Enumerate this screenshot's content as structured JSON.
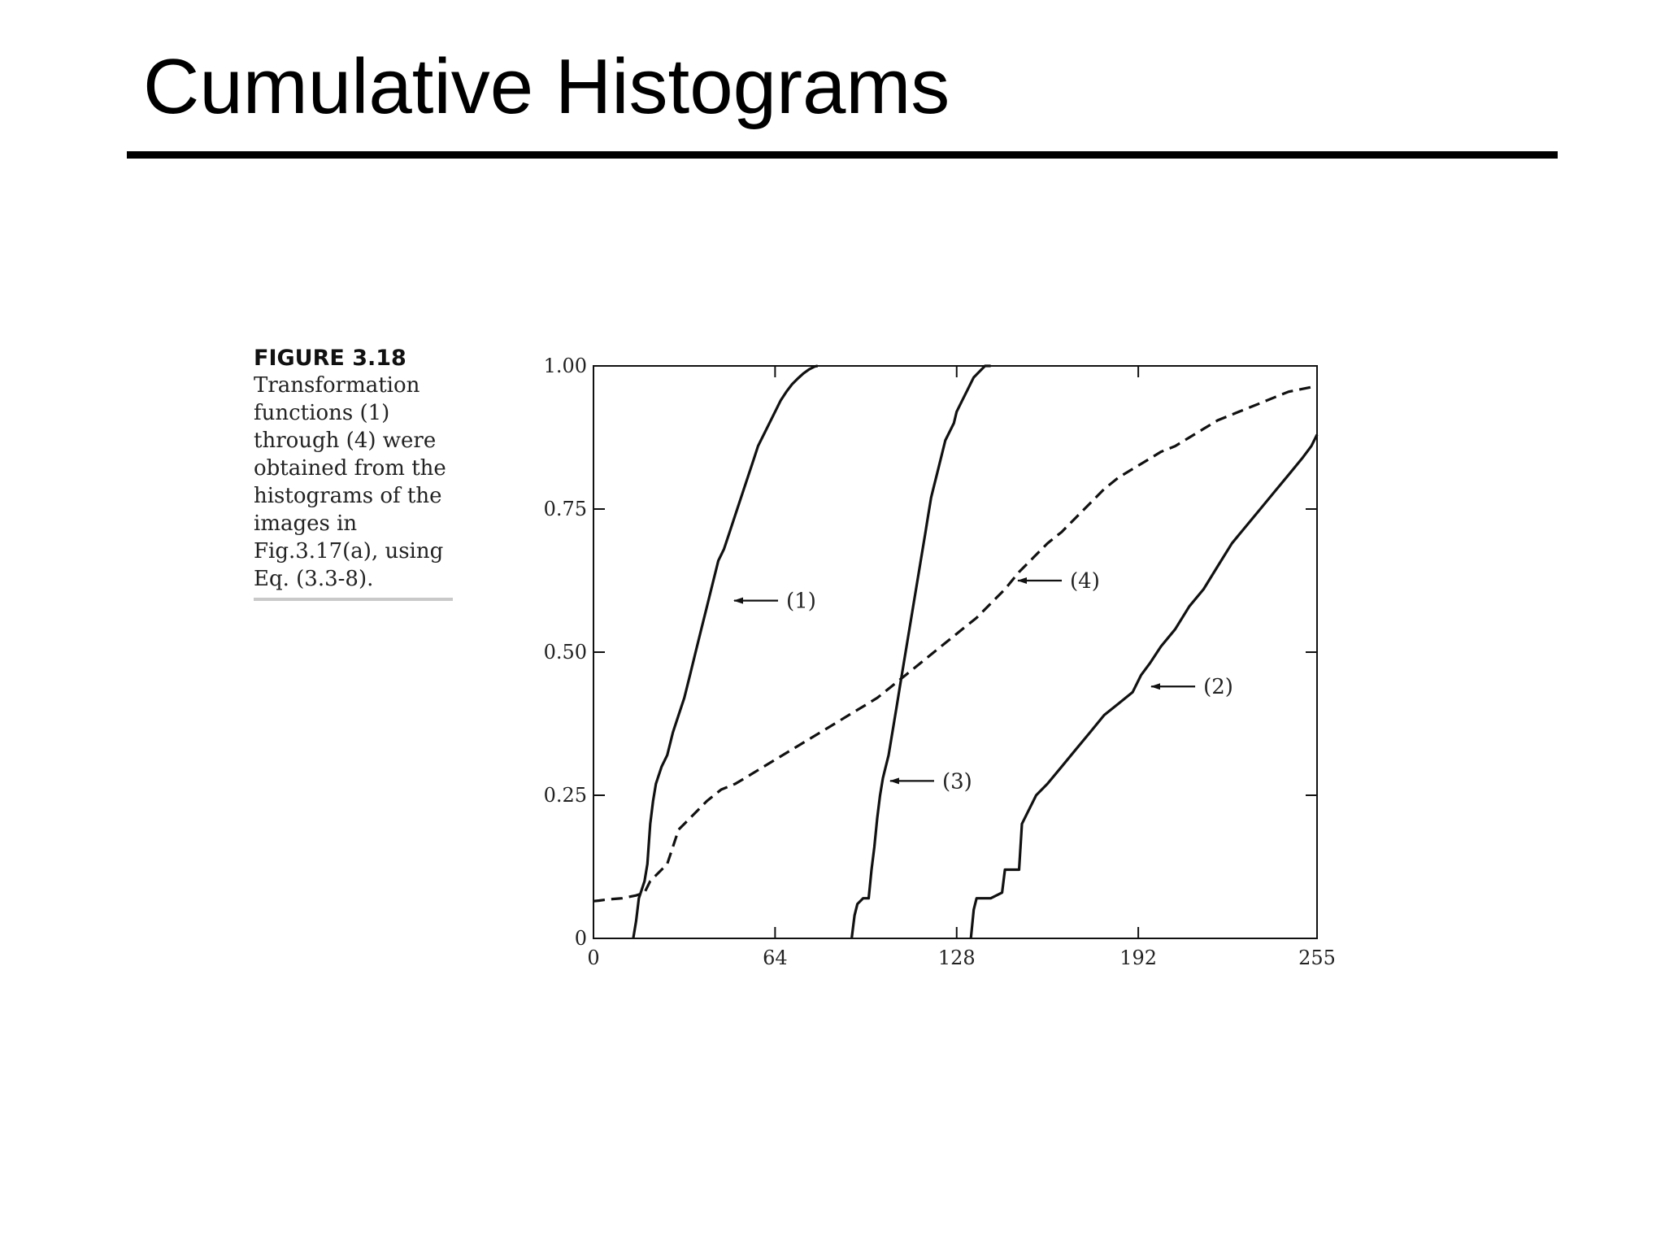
{
  "slide": {
    "title": "Cumulative Histograms"
  },
  "caption": {
    "heading": "FIGURE 3.18",
    "lines": [
      "Transformation",
      "functions (1)",
      "through (4) were",
      "obtained from the",
      "histograms of the",
      "images in",
      "Fig.3.17(a), using",
      "Eq. (3.3-8)."
    ]
  },
  "chart_data": {
    "type": "line",
    "title": "",
    "xlabel": "",
    "ylabel": "",
    "xlim": [
      0,
      255
    ],
    "ylim": [
      0,
      1
    ],
    "x_ticks": [
      0,
      64,
      128,
      192,
      255
    ],
    "y_ticks": [
      0,
      0.25,
      0.5,
      0.75,
      1.0
    ],
    "x_tick_labels": [
      "0",
      "64",
      "128",
      "192",
      "255"
    ],
    "y_tick_labels": [
      "0",
      "0.25",
      "0.50",
      "0.75",
      "1.00"
    ],
    "grid": false,
    "series": [
      {
        "name": "(1)",
        "style": "solid",
        "x": [
          14,
          15,
          16,
          18,
          19,
          20,
          21,
          22,
          24,
          26,
          28,
          30,
          32,
          34,
          36,
          38,
          40,
          42,
          44,
          46,
          48,
          50,
          52,
          54,
          56,
          58,
          60,
          62,
          64,
          66,
          68,
          70,
          72,
          74,
          76,
          78,
          79
        ],
        "y": [
          0.0,
          0.03,
          0.07,
          0.1,
          0.13,
          0.2,
          0.24,
          0.27,
          0.3,
          0.32,
          0.36,
          0.39,
          0.42,
          0.46,
          0.5,
          0.54,
          0.58,
          0.62,
          0.66,
          0.68,
          0.71,
          0.74,
          0.77,
          0.8,
          0.83,
          0.86,
          0.88,
          0.9,
          0.92,
          0.94,
          0.955,
          0.968,
          0.978,
          0.987,
          0.994,
          0.999,
          1.0
        ]
      },
      {
        "name": "(2)",
        "style": "solid",
        "x": [
          133,
          134,
          135,
          140,
          144,
          145,
          148,
          150,
          151,
          153,
          156,
          160,
          165,
          170,
          175,
          180,
          185,
          190,
          193,
          196,
          200,
          205,
          210,
          215,
          220,
          225,
          230,
          235,
          240,
          245,
          250,
          253,
          255
        ],
        "y": [
          0.0,
          0.05,
          0.07,
          0.07,
          0.08,
          0.12,
          0.12,
          0.12,
          0.2,
          0.22,
          0.25,
          0.27,
          0.3,
          0.33,
          0.36,
          0.39,
          0.41,
          0.43,
          0.46,
          0.48,
          0.51,
          0.54,
          0.58,
          0.61,
          0.65,
          0.69,
          0.72,
          0.75,
          0.78,
          0.81,
          0.84,
          0.86,
          0.88
        ]
      },
      {
        "name": "(3)",
        "style": "solid",
        "x": [
          91,
          92,
          93,
          95,
          97,
          98,
          99,
          100,
          101,
          102,
          103,
          104,
          105,
          106,
          107,
          108,
          109,
          110,
          111,
          112,
          113,
          114,
          115,
          116,
          117,
          118,
          119,
          120,
          121,
          122,
          123,
          124,
          125,
          126,
          127,
          128,
          130,
          132,
          134,
          136,
          138,
          140
        ],
        "y": [
          0.0,
          0.04,
          0.06,
          0.07,
          0.07,
          0.12,
          0.16,
          0.21,
          0.25,
          0.28,
          0.3,
          0.32,
          0.35,
          0.38,
          0.41,
          0.44,
          0.47,
          0.5,
          0.53,
          0.56,
          0.59,
          0.62,
          0.65,
          0.68,
          0.71,
          0.74,
          0.77,
          0.79,
          0.81,
          0.83,
          0.85,
          0.87,
          0.88,
          0.89,
          0.9,
          0.92,
          0.94,
          0.96,
          0.98,
          0.99,
          1.0,
          1.0
        ]
      },
      {
        "name": "(4)",
        "style": "dashed",
        "x": [
          0,
          2,
          5,
          10,
          15,
          18,
          20,
          24,
          26,
          28,
          30,
          32,
          35,
          40,
          45,
          50,
          55,
          60,
          65,
          70,
          75,
          80,
          85,
          90,
          95,
          100,
          105,
          110,
          115,
          120,
          125,
          130,
          135,
          140,
          145,
          150,
          155,
          160,
          165,
          170,
          175,
          180,
          185,
          190,
          195,
          200,
          205,
          210,
          215,
          220,
          225,
          230,
          235,
          240,
          245,
          250,
          255
        ],
        "y": [
          0.065,
          0.066,
          0.068,
          0.07,
          0.075,
          0.08,
          0.1,
          0.12,
          0.13,
          0.16,
          0.19,
          0.2,
          0.215,
          0.24,
          0.26,
          0.27,
          0.285,
          0.3,
          0.315,
          0.33,
          0.345,
          0.36,
          0.375,
          0.39,
          0.405,
          0.42,
          0.44,
          0.46,
          0.48,
          0.5,
          0.52,
          0.54,
          0.56,
          0.585,
          0.61,
          0.64,
          0.665,
          0.69,
          0.71,
          0.735,
          0.76,
          0.785,
          0.805,
          0.82,
          0.835,
          0.85,
          0.86,
          0.875,
          0.89,
          0.905,
          0.915,
          0.925,
          0.935,
          0.945,
          0.955,
          0.96,
          0.965
        ]
      }
    ],
    "annotations": [
      {
        "text": "(1)",
        "target_x": 49,
        "target_y": 0.59
      },
      {
        "text": "(2)",
        "target_x": 196,
        "target_y": 0.44
      },
      {
        "text": "(3)",
        "target_x": 104,
        "target_y": 0.275
      },
      {
        "text": "(4)",
        "target_x": 149,
        "target_y": 0.625
      }
    ]
  }
}
